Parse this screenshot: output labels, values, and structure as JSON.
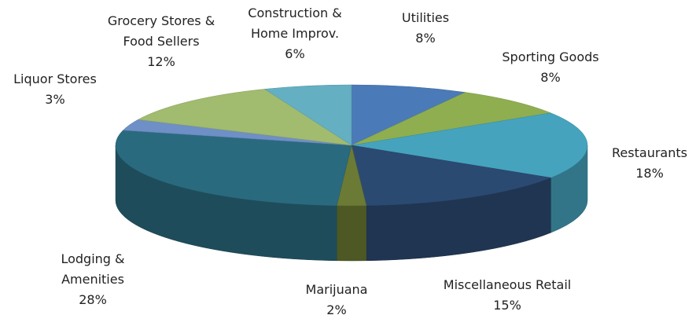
{
  "chart_data": {
    "type": "pie3d",
    "categories": [
      "Utilities",
      "Sporting Goods",
      "Restaurants",
      "Miscellaneous Retail",
      "Marijuana",
      "Lodging & Amenities",
      "Liquor Stores",
      "Grocery Stores & Food Sellers",
      "Construction & Home Improv."
    ],
    "values": [
      8,
      8,
      18,
      15,
      2,
      28,
      3,
      12,
      6
    ],
    "value_labels": [
      "8%",
      "8%",
      "18%",
      "15%",
      "2%",
      "28%",
      "3%",
      "12%",
      "6%"
    ],
    "colors": [
      "#4a7ab8",
      "#8fae50",
      "#45a3bd",
      "#2b4a72",
      "#6b7a34",
      "#2a6a7e",
      "#6f8fc7",
      "#a1bb6f",
      "#64afc2"
    ]
  }
}
